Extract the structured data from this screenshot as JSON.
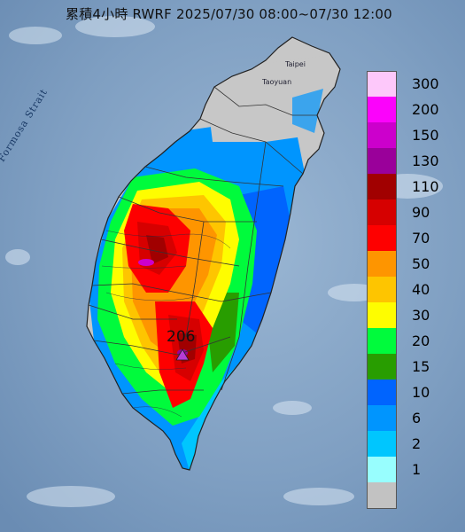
{
  "title": "累積4小時 RWRF 2025/07/30 08:00~07/30 12:00",
  "sea_label": "Formosa Strait",
  "cities": [
    "Taipei",
    "Taoyuan"
  ],
  "max_marker": {
    "value": "206",
    "symbol": "triangle",
    "color": "#b53cd6"
  },
  "legend": {
    "title": "",
    "bins": [
      {
        "label": "300",
        "color": "#fdc8fa"
      },
      {
        "label": "200",
        "color": "#fb03fb"
      },
      {
        "label": "150",
        "color": "#cc00cc"
      },
      {
        "label": "130",
        "color": "#9a009a"
      },
      {
        "label": "110",
        "color": "#a10000"
      },
      {
        "label": "90",
        "color": "#d60000"
      },
      {
        "label": "70",
        "color": "#fe0000"
      },
      {
        "label": "50",
        "color": "#fe9500"
      },
      {
        "label": "40",
        "color": "#fec500"
      },
      {
        "label": "30",
        "color": "#fefd00"
      },
      {
        "label": "20",
        "color": "#00fb3c"
      },
      {
        "label": "15",
        "color": "#289d00"
      },
      {
        "label": "10",
        "color": "#0064fe"
      },
      {
        "label": "6",
        "color": "#0095fe"
      },
      {
        "label": "2",
        "color": "#00c6fe"
      },
      {
        "label": "1",
        "color": "#98fefe"
      },
      {
        "label": "",
        "color": "#c2c2c2"
      }
    ]
  }
}
